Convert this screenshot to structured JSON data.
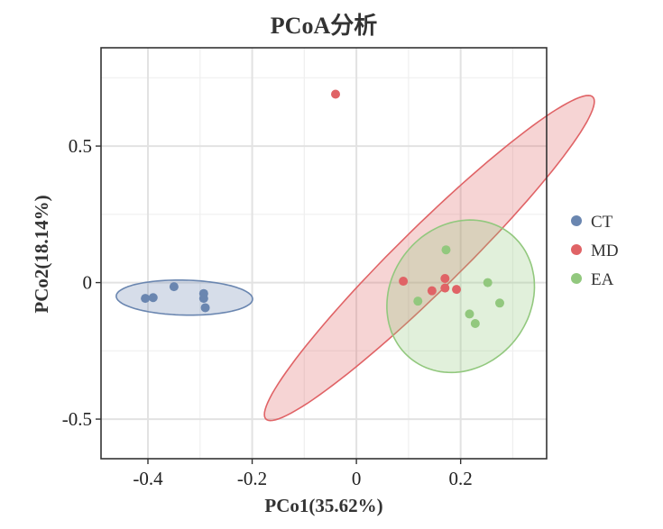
{
  "chart_data": {
    "type": "scatter",
    "title": "PCoA分析",
    "xlabel": "PCo1(35.62%)",
    "ylabel": "PCo2(18.14%)",
    "xlim": [
      -0.49,
      0.365
    ],
    "ylim": [
      -0.645,
      0.86
    ],
    "x_ticks": [
      -0.4,
      -0.2,
      0,
      0.2
    ],
    "x_tick_labels": [
      "-0.4",
      "-0.2",
      "0",
      "0.2"
    ],
    "y_ticks": [
      -0.5,
      0,
      0.5
    ],
    "y_tick_labels": [
      "-0.5",
      "0",
      "0.5"
    ],
    "grid": true,
    "legend_position": "right",
    "series": [
      {
        "name": "CT",
        "color": "#6a86b0",
        "points": [
          {
            "x": -0.405,
            "y": -0.058
          },
          {
            "x": -0.39,
            "y": -0.055
          },
          {
            "x": -0.35,
            "y": -0.015
          },
          {
            "x": -0.293,
            "y": -0.04
          },
          {
            "x": -0.293,
            "y": -0.058
          },
          {
            "x": -0.29,
            "y": -0.092
          }
        ],
        "ellipse": {
          "cx": -0.33,
          "cy": -0.055,
          "rx": 0.131,
          "ry": 0.064,
          "angle_deg": -3
        }
      },
      {
        "name": "MD",
        "color": "#e06366",
        "points": [
          {
            "x": -0.04,
            "y": 0.69
          },
          {
            "x": 0.09,
            "y": 0.005
          },
          {
            "x": 0.145,
            "y": -0.03
          },
          {
            "x": 0.17,
            "y": 0.015
          },
          {
            "x": 0.17,
            "y": -0.02
          },
          {
            "x": 0.192,
            "y": -0.025
          }
        ],
        "ellipse": {
          "cx": 0.14,
          "cy": 0.09,
          "rx": 0.67,
          "ry": 0.076,
          "angle_deg": 62.5
        }
      },
      {
        "name": "EA",
        "color": "#92c87e",
        "points": [
          {
            "x": 0.172,
            "y": 0.12
          },
          {
            "x": 0.252,
            "y": 0.0
          },
          {
            "x": 0.118,
            "y": -0.068
          },
          {
            "x": 0.275,
            "y": -0.075
          },
          {
            "x": 0.217,
            "y": -0.115
          },
          {
            "x": 0.228,
            "y": -0.15
          }
        ],
        "ellipse": {
          "cx": 0.2,
          "cy": -0.05,
          "rx": 0.14,
          "ry": 0.28,
          "angle_deg": -5
        }
      }
    ]
  }
}
